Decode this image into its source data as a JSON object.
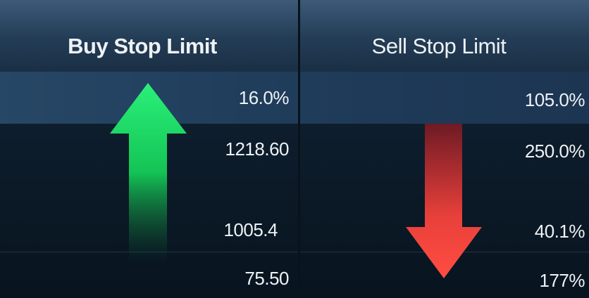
{
  "colors": {
    "buy": "#1fe06a",
    "sell": "#ff4a40",
    "background": "#0b1826"
  },
  "buy": {
    "title": "Buy Stop Limit",
    "icon": "arrow-up-icon",
    "values": [
      "16.0%",
      "1218.60",
      "1005.4",
      "75.50"
    ]
  },
  "sell": {
    "title": "Sell Stop Limit",
    "icon": "arrow-down-icon",
    "values": [
      "105.0%",
      "250.0%",
      "40.1%",
      "177%"
    ]
  }
}
